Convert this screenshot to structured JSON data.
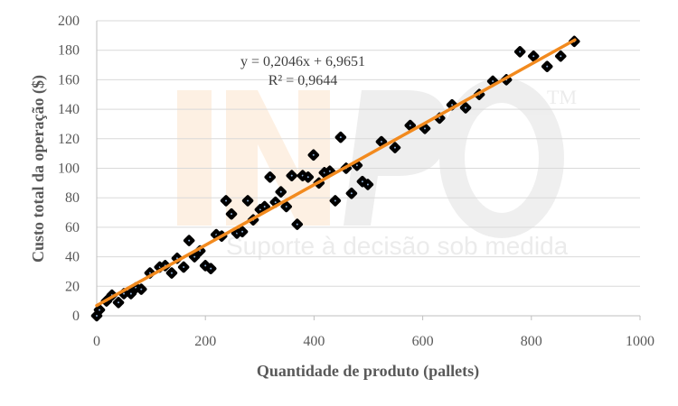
{
  "chart_data": {
    "type": "scatter",
    "title": "",
    "xlabel": "Quantidade de produto (pallets)",
    "ylabel": "Custo total da operação ($)",
    "xlim": [
      0,
      1000
    ],
    "ylim": [
      0,
      200
    ],
    "xticks": [
      0,
      200,
      400,
      600,
      800,
      1000
    ],
    "yticks": [
      0,
      20,
      40,
      60,
      80,
      100,
      120,
      140,
      160,
      180,
      200
    ],
    "grid": "horizontal",
    "points": [
      [
        0,
        0
      ],
      [
        5,
        4
      ],
      [
        18,
        10
      ],
      [
        28,
        14
      ],
      [
        40,
        9
      ],
      [
        50,
        15
      ],
      [
        63,
        15
      ],
      [
        72,
        19
      ],
      [
        82,
        18
      ],
      [
        98,
        29
      ],
      [
        116,
        33
      ],
      [
        126,
        34
      ],
      [
        138,
        29
      ],
      [
        148,
        39
      ],
      [
        160,
        33
      ],
      [
        170,
        51
      ],
      [
        180,
        40
      ],
      [
        190,
        44
      ],
      [
        200,
        34
      ],
      [
        210,
        32
      ],
      [
        220,
        55
      ],
      [
        230,
        54
      ],
      [
        238,
        78
      ],
      [
        248,
        69
      ],
      [
        258,
        56
      ],
      [
        268,
        57
      ],
      [
        278,
        78
      ],
      [
        288,
        65
      ],
      [
        301,
        72
      ],
      [
        309,
        74
      ],
      [
        319,
        94
      ],
      [
        329,
        77
      ],
      [
        339,
        84
      ],
      [
        349,
        74
      ],
      [
        359,
        95
      ],
      [
        369,
        62
      ],
      [
        379,
        95
      ],
      [
        389,
        94
      ],
      [
        399,
        109
      ],
      [
        409,
        90
      ],
      [
        419,
        97
      ],
      [
        429,
        98
      ],
      [
        439,
        78
      ],
      [
        449,
        121
      ],
      [
        459,
        100
      ],
      [
        469,
        83
      ],
      [
        479,
        102
      ],
      [
        489,
        91
      ],
      [
        499,
        89
      ],
      [
        524,
        118
      ],
      [
        549,
        114
      ],
      [
        577,
        129
      ],
      [
        604,
        127
      ],
      [
        631,
        134
      ],
      [
        654,
        143
      ],
      [
        679,
        141
      ],
      [
        704,
        150
      ],
      [
        729,
        159
      ],
      [
        754,
        160
      ],
      [
        779,
        179
      ],
      [
        804,
        176
      ],
      [
        829,
        169
      ],
      [
        854,
        176
      ],
      [
        879,
        186
      ]
    ],
    "trendline": {
      "slope": 0.2046,
      "intercept": 6.9651,
      "x_range": [
        0,
        880
      ],
      "color": "#F28A1E"
    },
    "equation": "y = 0,2046x + 6,9651",
    "r_squared": "R² = 0,9644",
    "marker_color": "#000000"
  },
  "watermark": {
    "logo": "INPO",
    "tm": "TM",
    "tagline": "Suporte à decisão sob medida"
  }
}
